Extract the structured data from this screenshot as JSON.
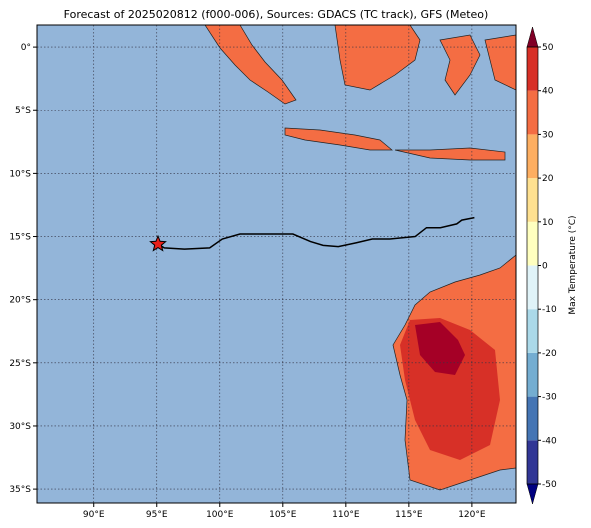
{
  "title": "Forecast of 2025020812 (f000-006), Sources: GDACS (TC track), GFS (Meteo)",
  "map": {
    "xlim": [
      85.5,
      123.5
    ],
    "ylim": [
      -36.1,
      1.75
    ],
    "xticks": [
      {
        "value": 90,
        "label": "90°E"
      },
      {
        "value": 95,
        "label": "95°E"
      },
      {
        "value": 100,
        "label": "100°E"
      },
      {
        "value": 105,
        "label": "105°E"
      },
      {
        "value": 110,
        "label": "110°E"
      },
      {
        "value": 115,
        "label": "115°E"
      },
      {
        "value": 120,
        "label": "120°E"
      }
    ],
    "yticks": [
      {
        "value": 0,
        "label": "0°"
      },
      {
        "value": -5,
        "label": "5°S"
      },
      {
        "value": -10,
        "label": "10°S"
      },
      {
        "value": -15,
        "label": "15°S"
      },
      {
        "value": -20,
        "label": "20°S"
      },
      {
        "value": -25,
        "label": "25°S"
      },
      {
        "value": -30,
        "label": "30°S"
      },
      {
        "value": -35,
        "label": "35°S"
      }
    ],
    "grid": true,
    "track": {
      "lon": [
        95.1,
        95.6,
        97.2,
        99.2,
        100.2,
        101.6,
        105.8,
        107.2,
        108.2,
        109.4,
        110.8,
        112.1,
        113.5,
        115.5,
        116.4,
        117.5,
        118.8,
        119.2,
        120.2
      ],
      "lat": [
        -15.6,
        -15.9,
        -16.0,
        -15.9,
        -15.2,
        -14.8,
        -14.8,
        -15.4,
        -15.7,
        -15.8,
        -15.5,
        -15.2,
        -15.2,
        -15.0,
        -14.3,
        -14.3,
        -14.0,
        -13.7,
        -13.5
      ],
      "color": "#000000"
    },
    "storm_position": {
      "lon": 95.1,
      "lat": -15.6,
      "color": "#e8201a"
    }
  },
  "colorbar": {
    "label": "Max Temperature (°C)",
    "lim": [
      -50,
      50
    ],
    "ticks": [
      50,
      40,
      30,
      20,
      10,
      0,
      -10,
      -20,
      -30,
      -40,
      -50
    ],
    "levels": [
      -50,
      -40,
      -30,
      -20,
      -10,
      0,
      10,
      20,
      30,
      40,
      50
    ],
    "colors": [
      "#313695",
      "#4575b4",
      "#74add1",
      "#abd9e9",
      "#e0f3f8",
      "#ffffbf",
      "#fee090",
      "#fdae61",
      "#f46d43",
      "#d73027",
      "#a50026"
    ],
    "under_color": "#000080",
    "over_color": "#800026"
  }
}
